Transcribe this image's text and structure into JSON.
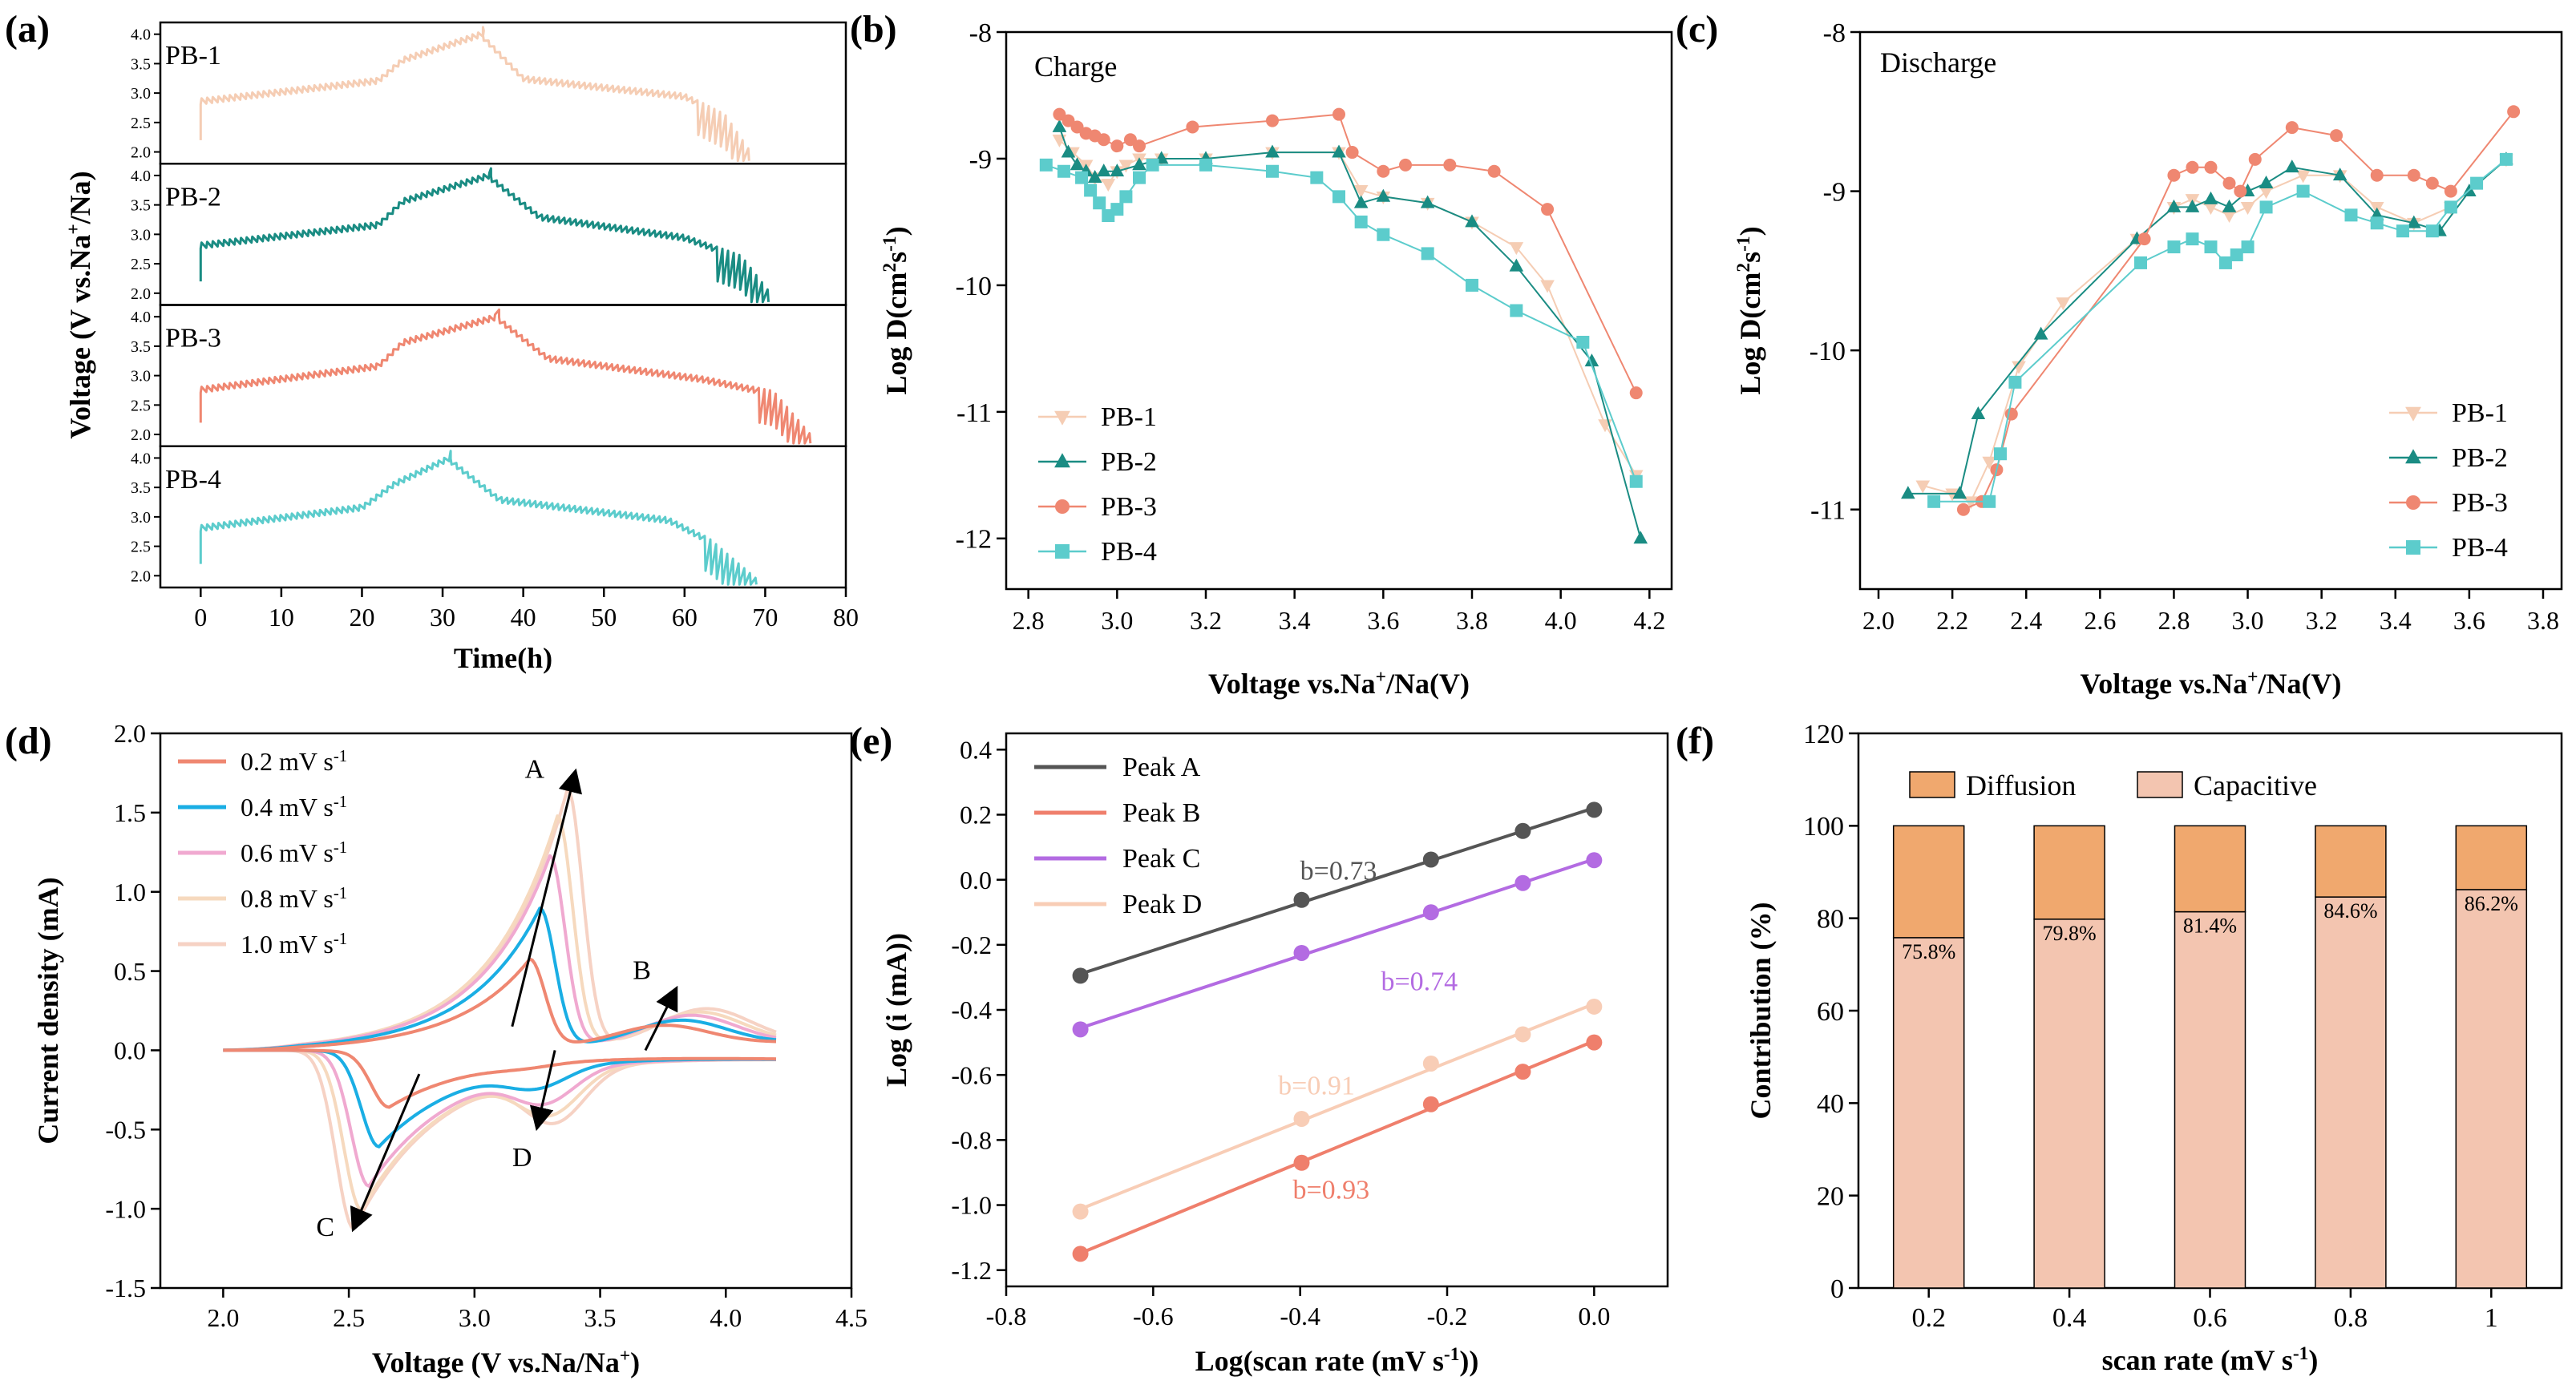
{
  "panels": {
    "a": "(a)",
    "b": "(b)",
    "c": "(c)",
    "d": "(d)",
    "e": "(e)",
    "f": "(f)"
  },
  "chart_data": [
    {
      "id": "a",
      "type": "line",
      "title": "",
      "xlabel": "Time(h)",
      "ylabel": "Voltage (V vs.Na+/Na)",
      "xlim": [
        -5,
        80
      ],
      "xticks": [
        0,
        10,
        20,
        30,
        40,
        50,
        60,
        70,
        80
      ],
      "ylim_each": [
        1.8,
        4.2
      ],
      "yticks_each": [
        "2.0",
        "2.5",
        "3.0",
        "3.5",
        "4.0"
      ],
      "series": [
        {
          "name": "PB-1",
          "color": "#F5CDB4",
          "end_time": 68.5,
          "peak_time": 35,
          "charge": {
            "t": [
              0,
              22,
              25,
              35
            ],
            "v": [
              2.85,
              3.2,
              3.55,
              4.0
            ]
          },
          "discharge": {
            "t": [
              35,
              40,
              60,
              65,
              68.5
            ],
            "v": [
              3.95,
              3.25,
              2.95,
              2.6,
              1.9
            ]
          }
        },
        {
          "name": "PB-2",
          "color": "#1A8C83",
          "end_time": 71,
          "peak_time": 36,
          "charge": {
            "t": [
              0,
              22,
              25,
              36
            ],
            "v": [
              2.8,
              3.15,
              3.55,
              4.0
            ]
          },
          "discharge": {
            "t": [
              36,
              42,
              60,
              67,
              71
            ],
            "v": [
              3.95,
              3.3,
              2.95,
              2.6,
              1.9
            ]
          }
        },
        {
          "name": "PB-3",
          "color": "#EF8771",
          "end_time": 76,
          "peak_time": 37,
          "charge": {
            "t": [
              0,
              22,
              25,
              37
            ],
            "v": [
              2.75,
              3.15,
              3.55,
              4.0
            ]
          },
          "discharge": {
            "t": [
              37,
              43,
              62,
              71,
              76
            ],
            "v": [
              3.95,
              3.3,
              2.95,
              2.7,
              1.9
            ]
          }
        },
        {
          "name": "PB-4",
          "color": "#5CCCCC",
          "end_time": 69,
          "peak_time": 31,
          "charge": {
            "t": [
              0,
              20,
              24,
              31
            ],
            "v": [
              2.8,
              3.15,
              3.55,
              4.0
            ]
          },
          "discharge": {
            "t": [
              31,
              37,
              58,
              63,
              69
            ],
            "v": [
              3.95,
              3.3,
              2.95,
              2.6,
              1.9
            ]
          }
        }
      ]
    },
    {
      "id": "b",
      "type": "line",
      "title": "Charge",
      "xlabel": "Voltage vs.Na+/Na(V)",
      "ylabel": "Log D(cm2s-1)",
      "xlim": [
        2.75,
        4.25
      ],
      "ylim": [
        -12.4,
        -8
      ],
      "xticks": [
        "2.8",
        "3.0",
        "3.2",
        "3.4",
        "3.6",
        "3.8",
        "4.0",
        "4.2"
      ],
      "yticks": [
        "-8",
        "-9",
        "-10",
        "-11",
        "-12"
      ],
      "legend": "bottom-left",
      "series": [
        {
          "name": "PB-1",
          "color": "#F5CDB4",
          "marker": "triangle-down",
          "x": [
            2.87,
            2.9,
            2.93,
            2.95,
            2.98,
            3.0,
            3.02,
            3.05,
            3.1,
            3.2,
            3.35,
            3.5,
            3.55,
            3.6,
            3.7,
            3.8,
            3.9,
            3.97,
            4.1,
            4.17
          ],
          "y": [
            -8.85,
            -8.95,
            -9.05,
            -9.15,
            -9.2,
            -9.1,
            -9.05,
            -9.0,
            -9.0,
            -9.0,
            -8.95,
            -8.95,
            -9.25,
            -9.3,
            -9.35,
            -9.5,
            -9.7,
            -10.0,
            -11.1,
            -11.5
          ]
        },
        {
          "name": "PB-2",
          "color": "#1A8C83",
          "marker": "triangle-up",
          "x": [
            2.87,
            2.89,
            2.91,
            2.93,
            2.95,
            2.97,
            3.0,
            3.05,
            3.1,
            3.2,
            3.35,
            3.5,
            3.55,
            3.6,
            3.7,
            3.8,
            3.9,
            4.07,
            4.18
          ],
          "y": [
            -8.75,
            -8.95,
            -9.05,
            -9.1,
            -9.15,
            -9.1,
            -9.1,
            -9.05,
            -9.0,
            -9.0,
            -8.95,
            -8.95,
            -9.35,
            -9.3,
            -9.35,
            -9.5,
            -9.85,
            -10.6,
            -12.0
          ]
        },
        {
          "name": "PB-3",
          "color": "#EF8771",
          "marker": "circle",
          "x": [
            2.87,
            2.89,
            2.91,
            2.93,
            2.95,
            2.97,
            3.0,
            3.03,
            3.05,
            3.17,
            3.35,
            3.5,
            3.53,
            3.6,
            3.65,
            3.75,
            3.85,
            3.97,
            4.17
          ],
          "y": [
            -8.65,
            -8.7,
            -8.75,
            -8.8,
            -8.82,
            -8.85,
            -8.9,
            -8.85,
            -8.9,
            -8.75,
            -8.7,
            -8.65,
            -8.95,
            -9.1,
            -9.05,
            -9.05,
            -9.1,
            -9.4,
            -10.85
          ]
        },
        {
          "name": "PB-4",
          "color": "#5CCCCC",
          "marker": "square",
          "x": [
            2.84,
            2.88,
            2.92,
            2.94,
            2.96,
            2.98,
            3.0,
            3.02,
            3.05,
            3.08,
            3.2,
            3.35,
            3.45,
            3.5,
            3.55,
            3.6,
            3.7,
            3.8,
            3.9,
            4.05,
            4.17
          ],
          "y": [
            -9.05,
            -9.1,
            -9.15,
            -9.25,
            -9.35,
            -9.45,
            -9.4,
            -9.3,
            -9.15,
            -9.05,
            -9.05,
            -9.1,
            -9.15,
            -9.3,
            -9.5,
            -9.6,
            -9.75,
            -10.0,
            -10.2,
            -10.45,
            -11.55
          ]
        }
      ]
    },
    {
      "id": "c",
      "type": "line",
      "title": "Discharge",
      "xlabel": "Voltage vs.Na+/Na(V)",
      "ylabel": "Log D(cm2s-1)",
      "xlim": [
        1.95,
        3.85
      ],
      "ylim": [
        -11.5,
        -8
      ],
      "xticks": [
        "2.0",
        "2.2",
        "2.4",
        "2.6",
        "2.8",
        "3.0",
        "3.2",
        "3.4",
        "3.6",
        "3.8"
      ],
      "yticks": [
        "-8",
        "-9",
        "-10",
        "-11"
      ],
      "legend": "bottom-right",
      "series": [
        {
          "name": "PB-1",
          "color": "#F5CDB4",
          "marker": "triangle-down",
          "x": [
            2.12,
            2.2,
            2.25,
            2.3,
            2.38,
            2.5,
            2.7,
            2.8,
            2.85,
            2.9,
            2.95,
            3.0,
            3.05,
            3.15,
            3.25,
            3.35,
            3.45,
            3.55,
            3.7
          ],
          "y": [
            -10.85,
            -10.9,
            -10.95,
            -10.7,
            -10.1,
            -9.7,
            -9.3,
            -9.1,
            -9.05,
            -9.1,
            -9.15,
            -9.1,
            -9.0,
            -8.9,
            -8.9,
            -9.1,
            -9.2,
            -9.1,
            -8.8
          ]
        },
        {
          "name": "PB-2",
          "color": "#1A8C83",
          "marker": "triangle-up",
          "x": [
            2.08,
            2.22,
            2.27,
            2.44,
            2.7,
            2.8,
            2.85,
            2.9,
            2.95,
            3.0,
            3.05,
            3.12,
            3.25,
            3.35,
            3.45,
            3.52,
            3.6,
            3.7
          ],
          "y": [
            -10.9,
            -10.9,
            -10.4,
            -9.9,
            -9.3,
            -9.1,
            -9.1,
            -9.05,
            -9.1,
            -9.0,
            -8.95,
            -8.85,
            -8.9,
            -9.15,
            -9.2,
            -9.25,
            -9.0,
            -8.8
          ]
        },
        {
          "name": "PB-3",
          "color": "#EF8771",
          "marker": "circle",
          "x": [
            2.23,
            2.28,
            2.32,
            2.36,
            2.72,
            2.8,
            2.85,
            2.9,
            2.95,
            2.98,
            3.02,
            3.12,
            3.24,
            3.35,
            3.45,
            3.5,
            3.55,
            3.72
          ],
          "y": [
            -11.0,
            -10.95,
            -10.75,
            -10.4,
            -9.3,
            -8.9,
            -8.85,
            -8.85,
            -8.95,
            -9.0,
            -8.8,
            -8.6,
            -8.65,
            -8.9,
            -8.9,
            -8.95,
            -9.0,
            -8.5
          ]
        },
        {
          "name": "PB-4",
          "color": "#5CCCCC",
          "marker": "square",
          "x": [
            2.15,
            2.3,
            2.33,
            2.37,
            2.71,
            2.8,
            2.85,
            2.9,
            2.94,
            2.97,
            3.0,
            3.05,
            3.15,
            3.28,
            3.35,
            3.42,
            3.5,
            3.55,
            3.62,
            3.7
          ],
          "y": [
            -10.95,
            -10.95,
            -10.65,
            -10.2,
            -9.45,
            -9.35,
            -9.3,
            -9.35,
            -9.45,
            -9.4,
            -9.35,
            -9.1,
            -9.0,
            -9.15,
            -9.2,
            -9.25,
            -9.25,
            -9.1,
            -8.95,
            -8.8
          ]
        }
      ]
    },
    {
      "id": "d",
      "type": "line",
      "title": "",
      "xlabel": "Voltage (V vs.Na/Na+)",
      "ylabel": "Current density (mA)",
      "xlim": [
        1.75,
        4.5
      ],
      "ylim": [
        -1.5,
        2.0
      ],
      "xticks": [
        "2.0",
        "2.5",
        "3.0",
        "3.5",
        "4.0",
        "4.5"
      ],
      "yticks": [
        "-1.5",
        "-1.0",
        "-0.5",
        "0.0",
        "0.5",
        "1.0",
        "1.5",
        "2.0"
      ],
      "legend": "top-left",
      "series": [
        {
          "name": "0.2 mV s-1",
          "color": "#EF8771",
          "peakA": [
            3.22,
            0.55
          ],
          "peakB": [
            3.75,
            0.12
          ],
          "peakC": [
            2.66,
            -0.35
          ],
          "peakD": [
            3.2,
            -0.02
          ]
        },
        {
          "name": "0.4 mV s-1",
          "color": "#1AAEE4",
          "peakA": [
            3.26,
            0.87
          ],
          "peakB": [
            3.82,
            0.15
          ],
          "peakC": [
            2.62,
            -0.6
          ],
          "peakD": [
            3.25,
            -0.12
          ]
        },
        {
          "name": "0.6 mV s-1",
          "color": "#F0A9D0",
          "peakA": [
            3.3,
            1.2
          ],
          "peakB": [
            3.86,
            0.18
          ],
          "peakC": [
            2.58,
            -0.85
          ],
          "peakD": [
            3.28,
            -0.2
          ]
        },
        {
          "name": "0.8 mV s-1",
          "color": "#F6D9BE",
          "peakA": [
            3.33,
            1.45
          ],
          "peakB": [
            3.89,
            0.2
          ],
          "peakC": [
            2.55,
            -1.0
          ],
          "peakD": [
            3.3,
            -0.27
          ]
        },
        {
          "name": "1.0 mV s-1",
          "color": "#F6D2C4",
          "peakA": [
            3.37,
            1.62
          ],
          "peakB": [
            3.92,
            0.22
          ],
          "peakC": [
            2.52,
            -1.12
          ],
          "peakD": [
            3.32,
            -0.32
          ]
        }
      ],
      "annotations": {
        "A": "A",
        "B": "B",
        "C": "C",
        "D": "D"
      }
    },
    {
      "id": "e",
      "type": "scatter",
      "title": "",
      "xlabel": "Log(scan rate (mV s-1))",
      "ylabel": "Log (i (mA))",
      "xlim": [
        -0.8,
        0.1
      ],
      "ylim": [
        -1.25,
        0.45
      ],
      "xticks": [
        "-0.8",
        "-0.6",
        "-0.4",
        "-0.2",
        "0.0"
      ],
      "yticks": [
        "-1.2",
        "-1.0",
        "-0.8",
        "-0.6",
        "-0.4",
        "-0.2",
        "0.0",
        "0.2",
        "0.4"
      ],
      "legend": "top-left",
      "x": [
        -0.699,
        -0.398,
        -0.222,
        -0.097,
        0.0
      ],
      "series": [
        {
          "name": "Peak A",
          "color": "#555555",
          "values": [
            -0.295,
            -0.062,
            0.062,
            0.15,
            0.215
          ],
          "label": "b=0.73"
        },
        {
          "name": "Peak B",
          "color": "#EF7F6C",
          "values": [
            -1.15,
            -0.87,
            -0.69,
            -0.59,
            -0.5
          ],
          "label": "b=0.93"
        },
        {
          "name": "Peak C",
          "color": "#B36BE2",
          "values": [
            -0.46,
            -0.225,
            -0.1,
            -0.01,
            0.06
          ],
          "label": "b=0.74"
        },
        {
          "name": "Peak D",
          "color": "#F8CDB6",
          "values": [
            -1.02,
            -0.735,
            -0.565,
            -0.475,
            -0.39
          ],
          "label": "b=0.91"
        }
      ]
    },
    {
      "id": "f",
      "type": "bar",
      "title": "",
      "xlabel": "scan rate (mV s-1)",
      "ylabel": "Contribution (%)",
      "ylim": [
        0,
        120
      ],
      "yticks": [
        "0",
        "20",
        "40",
        "60",
        "80",
        "100",
        "120"
      ],
      "categories": [
        "0.2",
        "0.4",
        "0.6",
        "0.8",
        "1"
      ],
      "legend": "top",
      "series": [
        {
          "name": "Capacitive",
          "color": "#F3C5B0",
          "values": [
            75.8,
            79.8,
            81.4,
            84.6,
            86.2
          ]
        },
        {
          "name": "Diffusion",
          "color": "#F0A86E",
          "values": [
            24.2,
            20.2,
            18.6,
            15.4,
            13.8
          ]
        }
      ],
      "bar_labels": [
        "75.8%",
        "79.8%",
        "81.4%",
        "84.6%",
        "86.2%"
      ]
    }
  ]
}
